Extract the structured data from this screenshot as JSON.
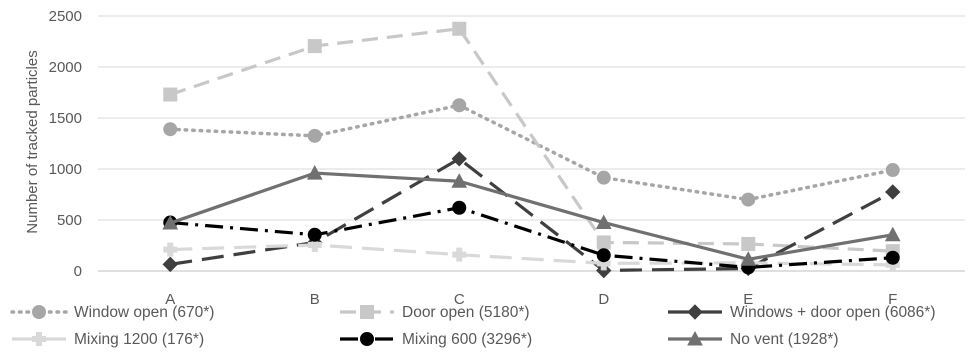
{
  "chart_data": {
    "type": "line",
    "title": "",
    "xlabel": "",
    "ylabel": "Number of  tracked particles",
    "categories": [
      "A",
      "B",
      "C",
      "D",
      "E",
      "F"
    ],
    "ylim": [
      0,
      2500
    ],
    "yticks": [
      0,
      500,
      1000,
      1500,
      2000,
      2500
    ],
    "grid": true,
    "legend_position": "bottom",
    "series": [
      {
        "name": "Window open (670*)",
        "values": [
          1390,
          1325,
          1625,
          915,
          700,
          990
        ],
        "color": "#a6a6a6",
        "dash": "dot",
        "marker": "circle"
      },
      {
        "name": "Door open (5180*)",
        "values": [
          1730,
          2205,
          2375,
          280,
          265,
          195
        ],
        "color": "#c8c8c8",
        "dash": "dash",
        "marker": "square"
      },
      {
        "name": "Windows + door open (6086*)",
        "values": [
          65,
          280,
          1100,
          5,
          25,
          775
        ],
        "color": "#3f3f3f",
        "dash": "longdash",
        "marker": "diamond"
      },
      {
        "name": "Mixing 1200 (176*)",
        "values": [
          210,
          255,
          160,
          75,
          80,
          60
        ],
        "color": "#d9d9d9",
        "dash": "longdash",
        "marker": "plus"
      },
      {
        "name": "Mixing 600 (3296*)",
        "values": [
          475,
          355,
          620,
          155,
          35,
          130
        ],
        "color": "#000000",
        "dash": "dashdot",
        "marker": "circle"
      },
      {
        "name": "No vent (1928*)",
        "values": [
          470,
          960,
          880,
          475,
          115,
          355
        ],
        "color": "#707070",
        "dash": "solid",
        "marker": "triangle"
      }
    ]
  }
}
